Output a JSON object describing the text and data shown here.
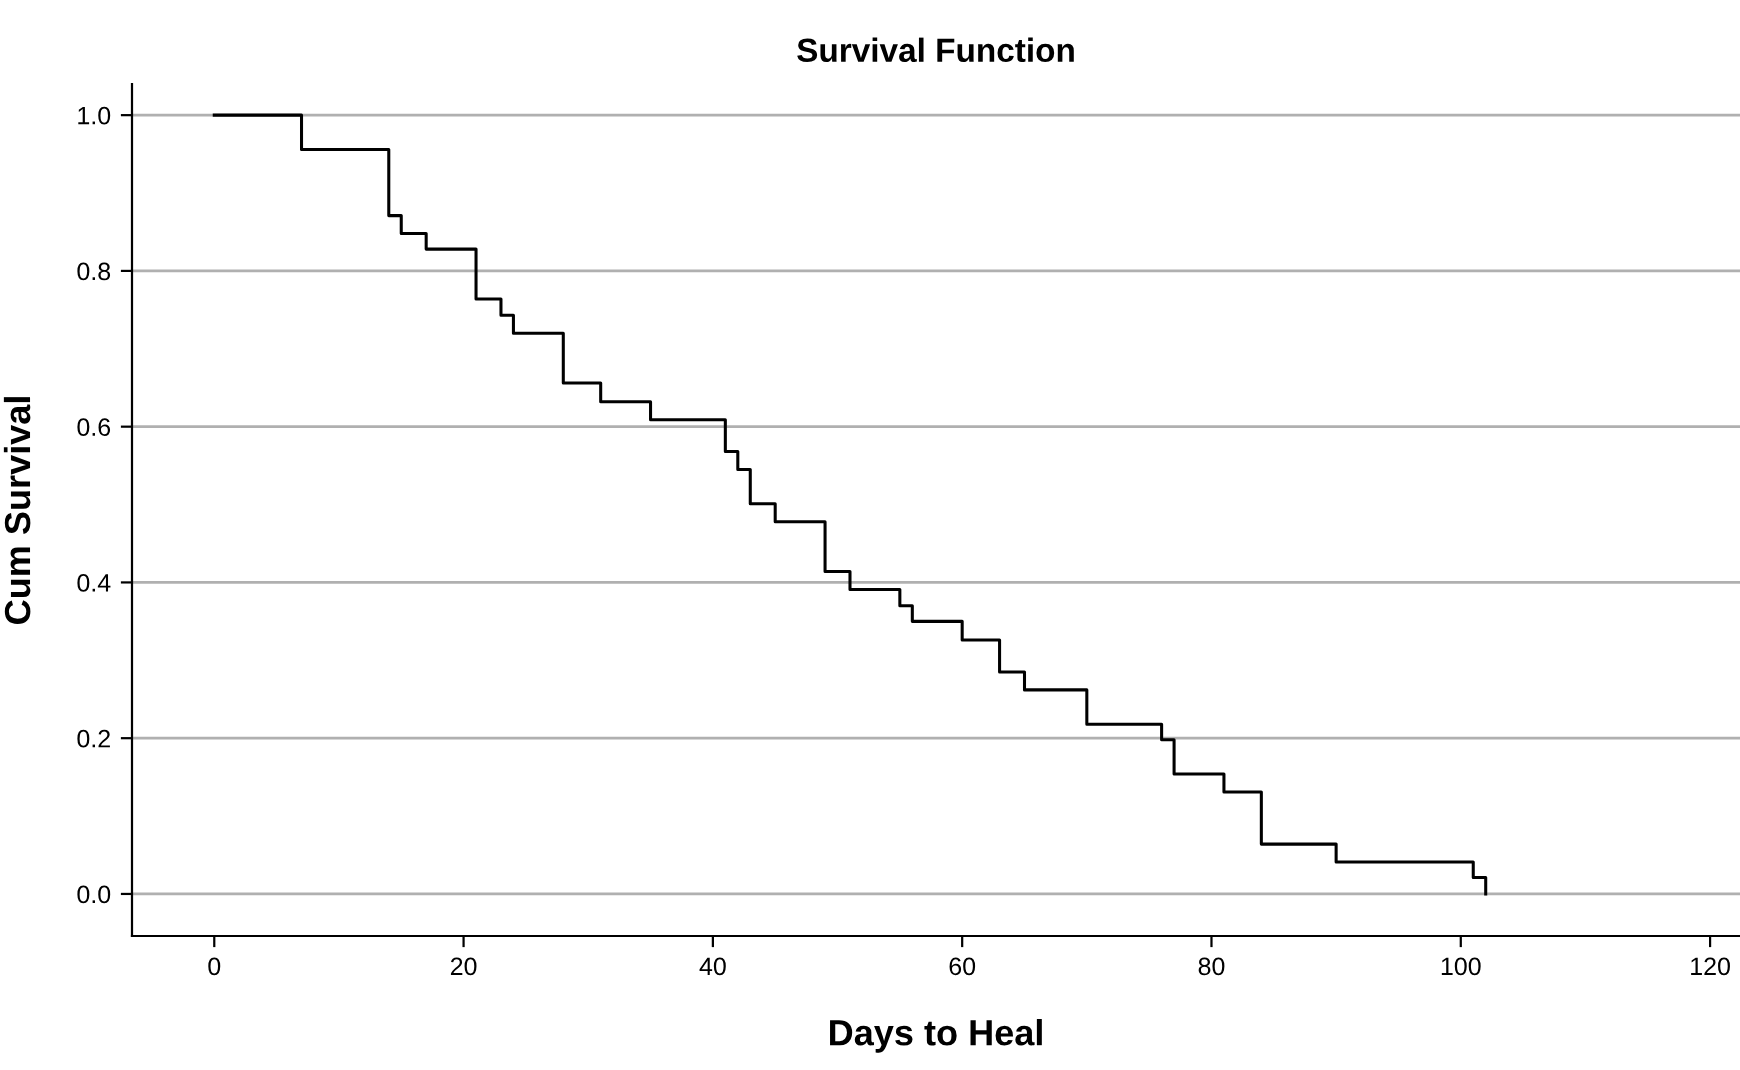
{
  "chart_data": {
    "type": "step",
    "title": "Survival Function",
    "xlabel": "Days to Heal",
    "ylabel": "Cum Survival",
    "x": [
      0,
      7,
      14,
      15,
      17,
      21,
      23,
      24,
      28,
      31,
      35,
      41,
      42,
      43,
      45,
      49,
      51,
      55,
      56,
      60,
      63,
      65,
      70,
      76,
      77,
      81,
      84,
      90,
      101,
      102
    ],
    "series": [
      {
        "color": "#000000",
        "values": [
          1.0,
          0.956,
          0.871,
          0.848,
          0.828,
          0.764,
          0.743,
          0.72,
          0.656,
          0.632,
          0.609,
          0.568,
          0.545,
          0.501,
          0.478,
          0.414,
          0.391,
          0.37,
          0.35,
          0.326,
          0.285,
          0.262,
          0.218,
          0.198,
          0.154,
          0.131,
          0.064,
          0.041,
          0.021,
          0.0
        ]
      }
    ],
    "xlim": [
      -6.6,
      122.4
    ],
    "xticks": [
      0,
      20,
      40,
      60,
      80,
      100,
      120
    ],
    "ylim": [
      -0.054,
      1.04
    ],
    "yticks": [
      {
        "value": 0,
        "label": "0.0"
      },
      {
        "value": 0.2,
        "label": "0.2"
      },
      {
        "value": 0.4,
        "label": "0.4"
      },
      {
        "value": 0.6,
        "label": "0.6"
      },
      {
        "value": 0.8,
        "label": "0.8"
      },
      {
        "value": 1.0,
        "label": "1.0"
      }
    ],
    "grid": "y"
  }
}
